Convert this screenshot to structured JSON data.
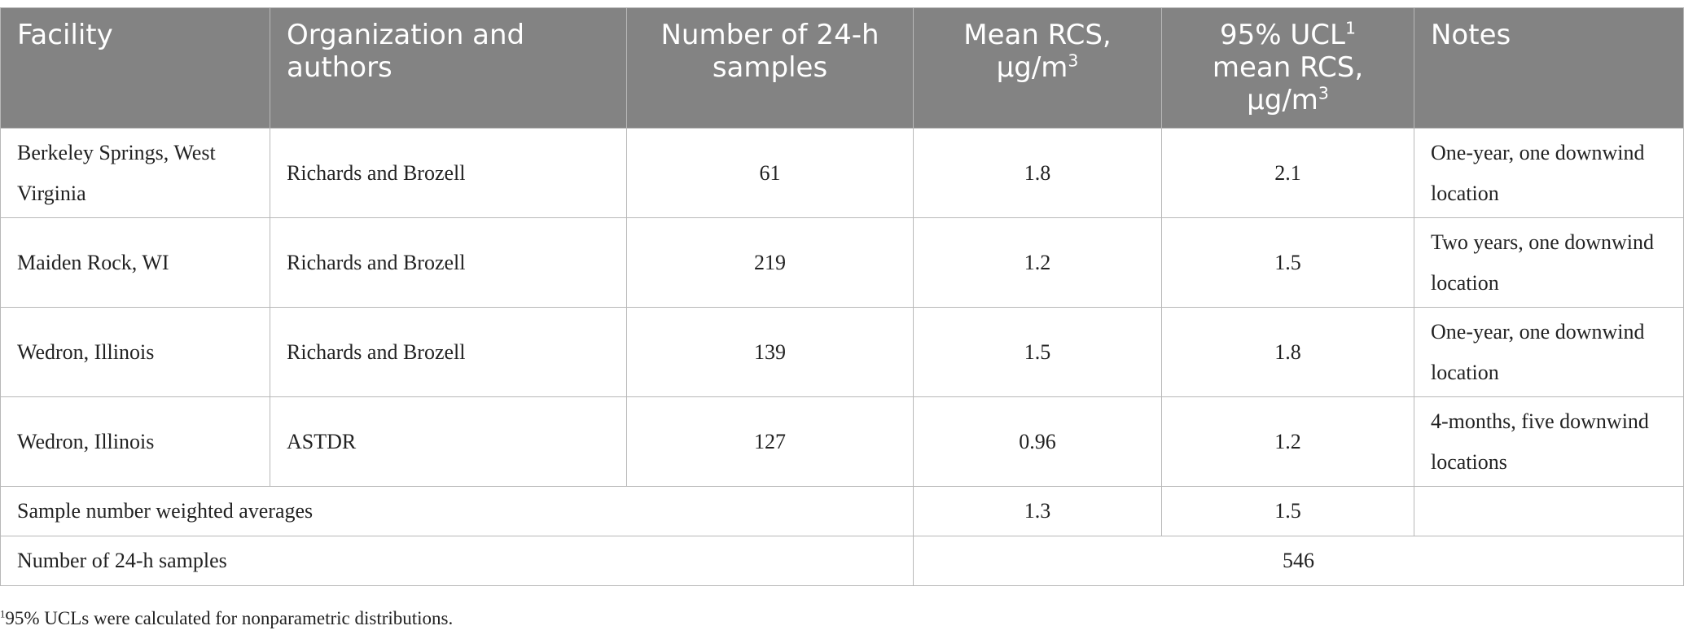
{
  "table": {
    "headers": {
      "facility": "Facility",
      "organization": "Organization and authors",
      "samples": "Number of 24-h samples",
      "mean_rcs": "Mean RCS, μg/m",
      "mean_rcs_sup": "3",
      "ucl_a": "95% UCL",
      "ucl_sup1": "1",
      "ucl_b": " mean RCS, μg/m",
      "ucl_sup3": "3",
      "notes": "Notes"
    },
    "rows": [
      {
        "facility": "Berkeley Springs, West Virginia",
        "organization": "Richards and Brozell",
        "samples": "61",
        "mean_rcs": "1.8",
        "ucl": "2.1",
        "notes": "One-year, one downwind location"
      },
      {
        "facility": "Maiden Rock, WI",
        "organization": "Richards and Brozell",
        "samples": "219",
        "mean_rcs": "1.2",
        "ucl": "1.5",
        "notes": "Two years, one downwind location"
      },
      {
        "facility": "Wedron, Illinois",
        "organization": "Richards and Brozell",
        "samples": "139",
        "mean_rcs": "1.5",
        "ucl": "1.8",
        "notes": "One-year, one downwind location"
      },
      {
        "facility": "Wedron, Illinois",
        "organization": "ASTDR",
        "samples": "127",
        "mean_rcs": "0.96",
        "ucl": "1.2",
        "notes": "4-months, five downwind locations"
      }
    ],
    "weighted": {
      "label": "Sample number weighted averages",
      "mean_rcs": "1.3",
      "ucl": "1.5",
      "notes": ""
    },
    "total": {
      "label": "Number of 24-h samples",
      "value": "546"
    }
  },
  "footnote": {
    "marker": "1",
    "text": "95% UCLs were calculated for nonparametric distributions."
  }
}
